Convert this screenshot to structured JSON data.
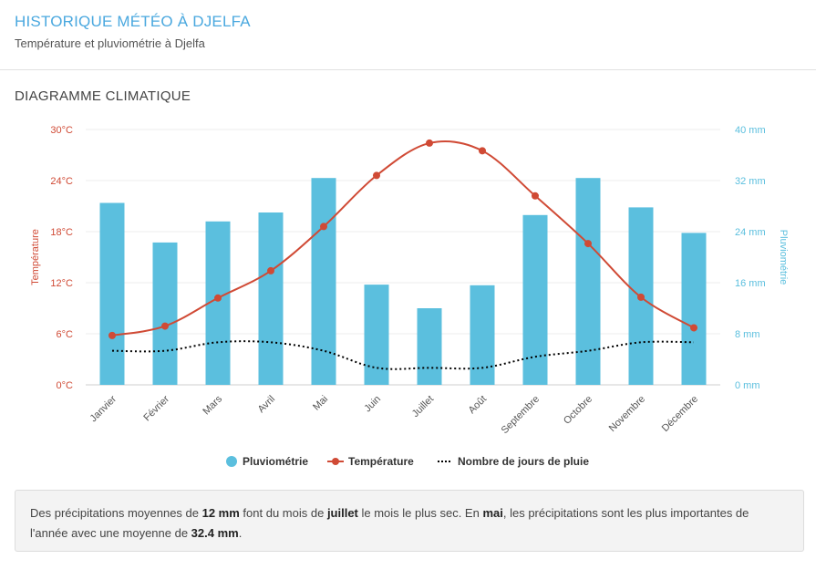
{
  "header": {
    "title": "HISTORIQUE MÉTÉO À DJELFA",
    "subtitle": "Température et pluviométrie à Djelfa"
  },
  "section": {
    "title": "DIAGRAMME CLIMATIQUE"
  },
  "colors": {
    "bars": "#5bbfde",
    "temperature": "#d04a35",
    "rain_days": "#000000",
    "title": "#4aa8df"
  },
  "chart_data": {
    "type": "bar",
    "categories": [
      "Janvier",
      "Février",
      "Mars",
      "Avril",
      "Mai",
      "Juin",
      "Juillet",
      "Août",
      "Septembre",
      "Octobre",
      "Novembre",
      "Décembre"
    ],
    "series": [
      {
        "name": "Pluviométrie",
        "type": "bar",
        "axis": "right",
        "values": [
          28.5,
          22.3,
          25.6,
          27.0,
          32.4,
          15.7,
          12.0,
          15.6,
          26.6,
          32.4,
          27.8,
          23.8
        ]
      },
      {
        "name": "Température",
        "type": "line",
        "axis": "left",
        "values": [
          5.8,
          6.9,
          10.2,
          13.4,
          18.6,
          24.6,
          28.4,
          27.5,
          22.2,
          16.6,
          10.3,
          6.7
        ]
      },
      {
        "name": "Nombre de jours de pluie",
        "type": "line",
        "style": "dotted",
        "values": [
          4.0,
          4.0,
          5.0,
          5.0,
          4.0,
          2.0,
          2.0,
          2.0,
          3.3,
          4.0,
          5.0,
          5.0
        ]
      }
    ],
    "y_left": {
      "label": "Température",
      "ticks": [
        "0°C",
        "6°C",
        "12°C",
        "18°C",
        "24°C",
        "30°C"
      ],
      "range": [
        0,
        30
      ]
    },
    "y_right": {
      "label": "Pluviométrie",
      "ticks": [
        "0 mm",
        "8 mm",
        "16 mm",
        "24 mm",
        "32 mm",
        "40 mm"
      ],
      "range": [
        0,
        40
      ]
    },
    "grid": true,
    "legend": "bottom-center"
  },
  "info": {
    "p1": "Des précipitations moyennes de ",
    "v1": "12 mm",
    "p2": " font du mois de ",
    "v2": "juillet",
    "p3": " le mois le plus sec. En ",
    "v3": "mai",
    "p4": ", les précipitations sont les plus importantes de l'année avec une moyenne de ",
    "v4": "32.4 mm",
    "p5": "."
  }
}
